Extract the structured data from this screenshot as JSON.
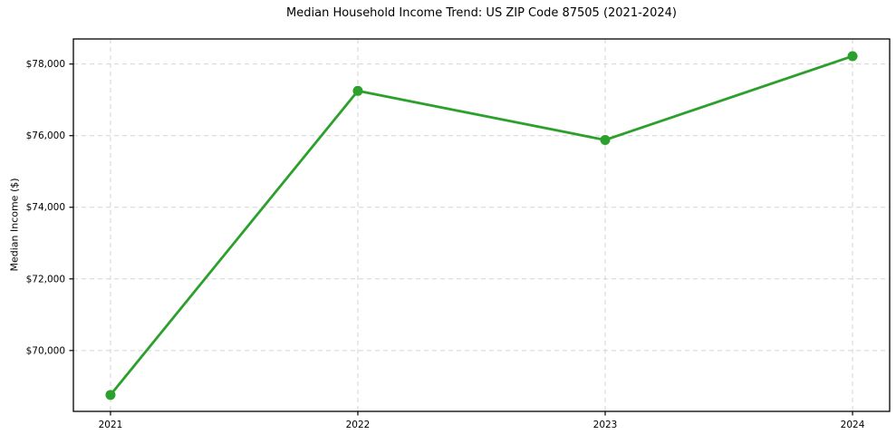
{
  "chart_data": {
    "type": "line",
    "title": "Median Household Income Trend: US ZIP Code 87505 (2021-2024)",
    "xlabel": "",
    "ylabel": "Median Income ($)",
    "x": [
      "2021",
      "2022",
      "2023",
      "2024"
    ],
    "series": [
      {
        "name": "Median Household Income",
        "values": [
          68760,
          77250,
          75880,
          78220
        ]
      }
    ],
    "yticks": [
      70000,
      72000,
      74000,
      76000,
      78000
    ],
    "ytick_labels": [
      "$70,000",
      "$72,000",
      "$74,000",
      "$76,000",
      "$78,000"
    ],
    "ylim": [
      68300,
      78700
    ],
    "grid": "dashed, both axes",
    "legend_position": "none",
    "line_color": "#2ca02c",
    "marker": "circle",
    "grid_color": "#d4d4d4",
    "axis_color": "#000000"
  }
}
